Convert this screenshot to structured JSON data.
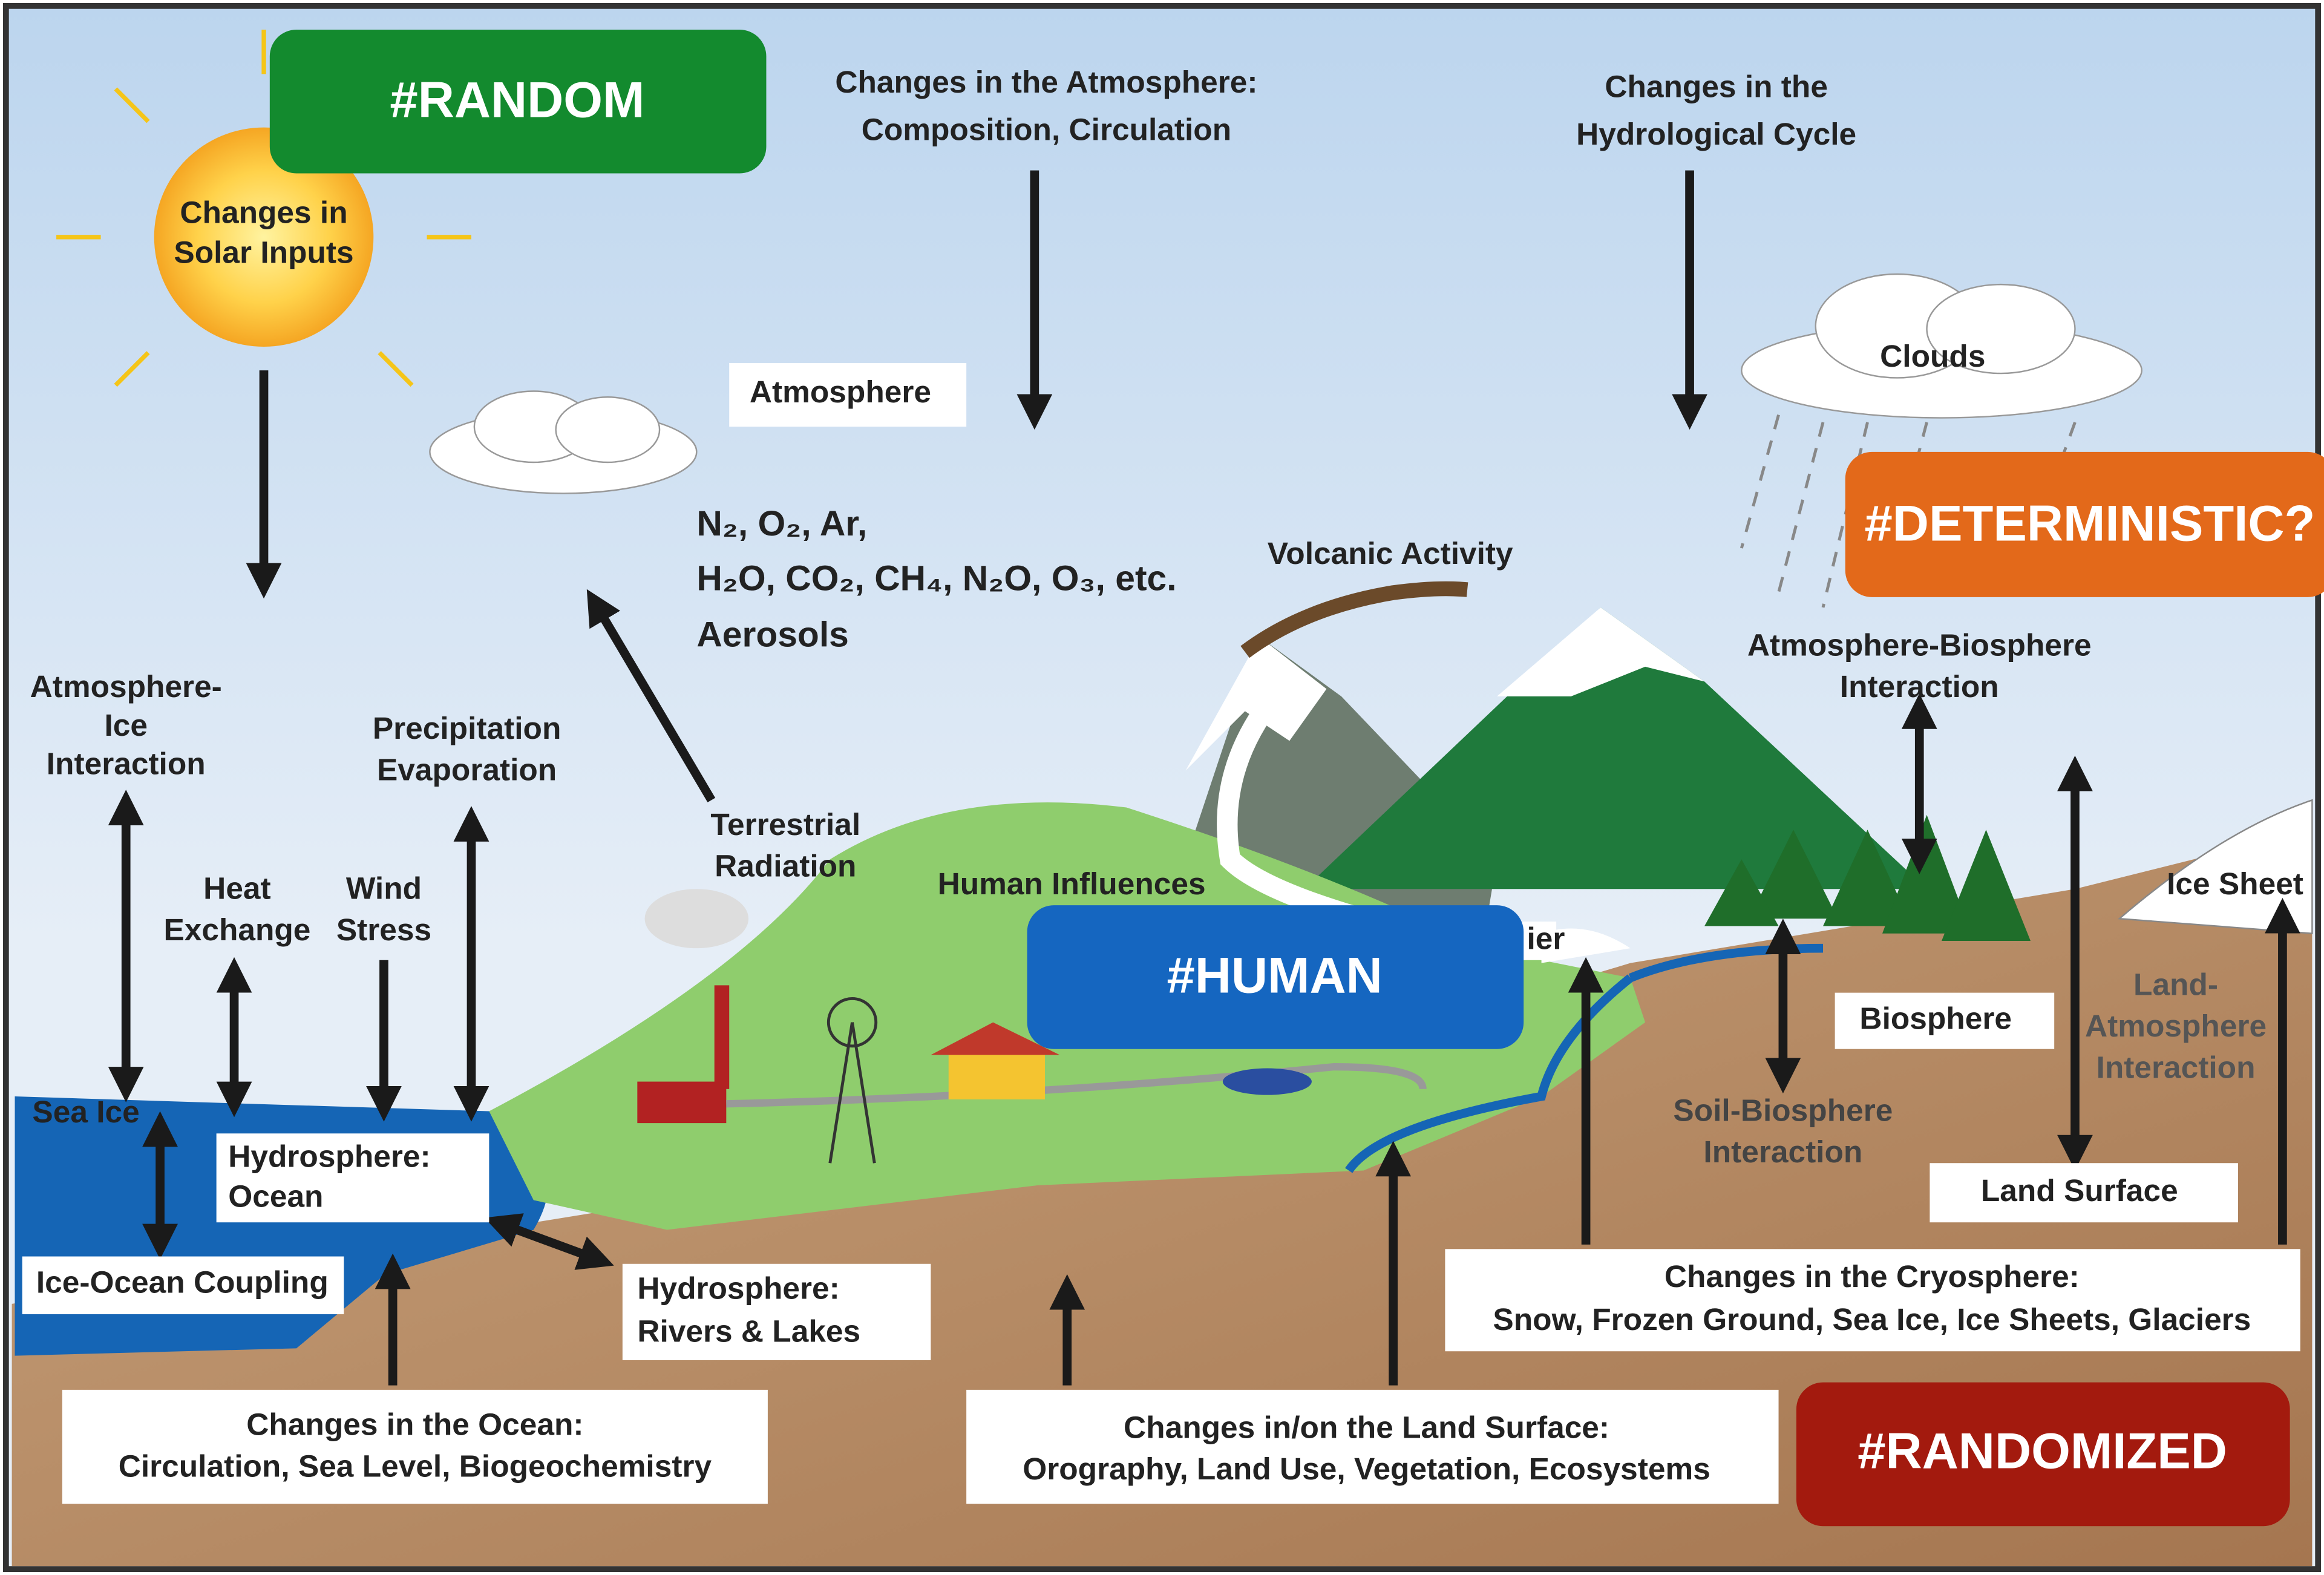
{
  "tags": {
    "random": "#RANDOM",
    "deterministic": "#DETERMINISTIC?",
    "human": "#HUMAN",
    "randomized": "#RANDOMIZED"
  },
  "labels": {
    "atmosphere_changes": [
      "Changes in the Atmosphere:",
      "Composition, Circulation"
    ],
    "hydrological_changes": [
      "Changes in the",
      "Hydrological Cycle"
    ],
    "solar_inputs": [
      "Changes in",
      "Solar Inputs"
    ],
    "atmosphere": "Atmosphere",
    "clouds": "Clouds",
    "gases": [
      "N₂, O₂,  Ar,",
      "H₂O, CO₂, CH₄, N₂O, O₃, etc.",
      "Aerosols"
    ],
    "volcanic_activity": "Volcanic Activity",
    "atmosphere_biosphere": [
      "Atmosphere-Biosphere",
      "Interaction"
    ],
    "atmosphere_ice": [
      "Atmosphere-",
      "Ice",
      "Interaction"
    ],
    "precipitation": [
      "Precipitation",
      "Evaporation"
    ],
    "terrestrial_radiation": [
      "Terrestrial",
      "Radiation"
    ],
    "human_influences": "Human Influences",
    "heat_exchange": [
      "Heat",
      "Exchange"
    ],
    "wind_stress": [
      "Wind",
      "Stress"
    ],
    "ice_sheet": "Ice Sheet",
    "glacier": "ier",
    "biosphere": "Biosphere",
    "land_atmosphere": [
      "Land-",
      "Atmosphere",
      "Interaction"
    ],
    "sea_ice": "Sea Ice",
    "hydrosphere_ocean": [
      "Hydrosphere:",
      "Ocean"
    ],
    "soil_biosphere": [
      "Soil-Biosphere",
      "Interaction"
    ],
    "land_surface": "Land Surface",
    "ice_ocean_coupling": "Ice-Ocean Coupling",
    "hydrosphere_rivers": [
      "Hydrosphere:",
      "Rivers & Lakes"
    ],
    "cryosphere_changes": [
      "Changes in the Cryosphere:",
      "Snow, Frozen Ground, Sea Ice, Ice Sheets, Glaciers"
    ],
    "ocean_changes": [
      "Changes in the Ocean:",
      "Circulation, Sea Level, Biogeochemistry"
    ],
    "land_changes": [
      "Changes in/on the Land Surface:",
      "Orography, Land Use, Vegetation, Ecosystems"
    ]
  }
}
